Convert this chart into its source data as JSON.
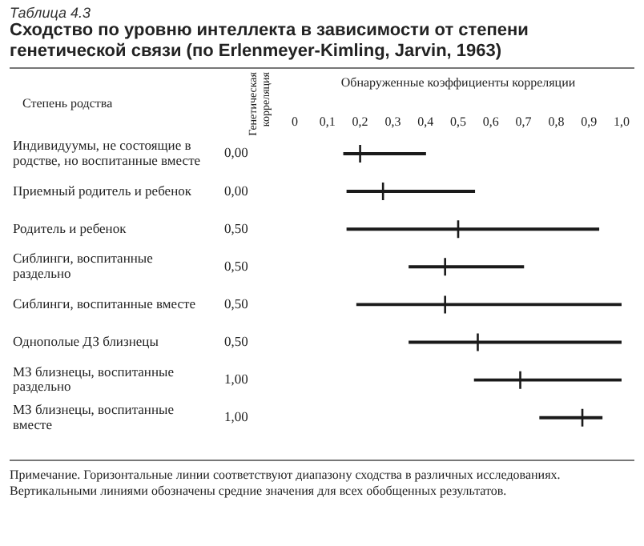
{
  "chart_data": {
    "type": "bar",
    "subtitle": "Таблица 4.3",
    "title": "Сходство по уровню интеллекта в зависимости от степени генетической связи (по Erlenmeyer-Kimling, Jarvin, 1963)",
    "xlabel": "Обнаруженные коэффициенты корреляции",
    "ylabel": "Степень родства",
    "y2label": "Генетическая корреляция",
    "categories": [
      "Индивидуумы, не состоящие в родстве, но воспитанные вместе",
      "Приемный родитель и ребенок",
      "Родитель и ребенок",
      "Сиблинги, воспитанные раздельно",
      "Сиблинги, воспитанные вместе",
      "Однополые ДЗ близнецы",
      "МЗ близнецы, воспитанные раздельно",
      "МЗ близнецы, воспитанные вместе"
    ],
    "y2_categories": [
      "0,00",
      "0,00",
      "0,50",
      "0,50",
      "0,50",
      "0,50",
      "1,00",
      "1,00"
    ],
    "series": [
      {
        "type": "bar",
        "color": "#1a1a1a",
        "base": [
          0.15,
          0.16,
          0.16,
          0.35,
          0.19,
          0.35,
          0.55,
          0.75
        ],
        "values": [
          0.25,
          0.39,
          0.77,
          0.35,
          0.81,
          0.65,
          0.45,
          0.19
        ]
      },
      {
        "type": "scatter",
        "color": "#1a1a1a",
        "x": [
          "Индивидуумы, не состоящие в родстве, но воспитанные вместе",
          "Приемный родитель и ребенок",
          "Родитель и ребенок",
          "Сиблинги, воспитанные раздельно",
          "Сиблинги, воспитанные вместе",
          "Однополые ДЗ близнецы",
          "МЗ близнецы, воспитанные раздельно",
          "МЗ близнецы, воспитанные вместе"
        ],
        "values": [
          0.2,
          0.27,
          0.5,
          0.46,
          0.46,
          0.56,
          0.69,
          0.88
        ]
      }
    ],
    "xlim": [
      0,
      1
    ],
    "xticks": [
      {
        "value": 0,
        "label": "0"
      },
      {
        "value": 0.1,
        "label": "0,1"
      },
      {
        "value": 0.2,
        "label": "0,2"
      },
      {
        "value": 0.3,
        "label": "0,3"
      },
      {
        "value": 0.4,
        "label": "0,4"
      },
      {
        "value": 0.5,
        "label": "0,5"
      },
      {
        "value": 0.6,
        "label": "0,6"
      },
      {
        "value": 0.7,
        "label": "0,7"
      },
      {
        "value": 0.8,
        "label": "0,8"
      },
      {
        "value": 0.9,
        "label": "0,9"
      },
      {
        "value": 1,
        "label": "1,0"
      }
    ],
    "grid": false,
    "legend": false,
    "marker": "cross",
    "orientation": "horizontal",
    "annotations": [
      "Примечание. Горизонтальные линии соответствуют диапазону сходства в различных исследованиях. Вертикальными линиями обозначены средние значения для всех обобщенных результатов."
    ]
  }
}
